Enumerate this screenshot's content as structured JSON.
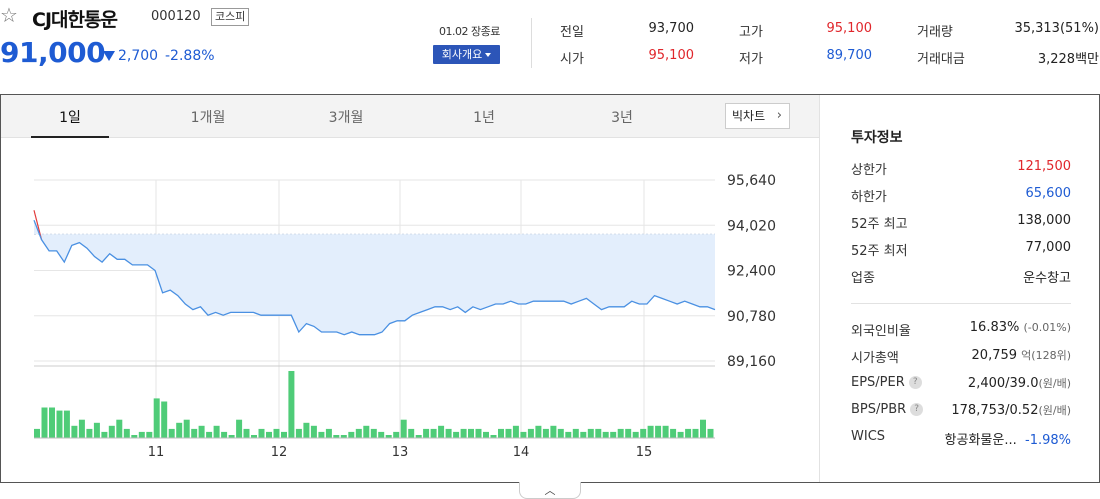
{
  "stock": {
    "name": "CJ대한통운",
    "code": "000120",
    "market": "코스피",
    "price": "91,000",
    "change_amount": "2,700",
    "change_percent": "-2.88%",
    "date_status": "01.02 장종료",
    "company_button": "회사개요"
  },
  "quote": {
    "prev_close_label": "전일",
    "prev_close": "93,700",
    "high_label": "고가",
    "high": "95,100",
    "volume_label": "거래량",
    "volume": "35,313(51%)",
    "open_label": "시가",
    "open": "95,100",
    "low_label": "저가",
    "low": "89,700",
    "amount_label": "거래대금",
    "amount": "3,228백만"
  },
  "tabs": [
    "1일",
    "1개월",
    "3개월",
    "1년",
    "3년"
  ],
  "active_tab": "1일",
  "bigchart_label": "빅차트",
  "investment": {
    "title": "투자정보",
    "rows1": [
      {
        "label": "상한가",
        "value": "121,500",
        "color": "#e0262b"
      },
      {
        "label": "하한가",
        "value": "65,600",
        "color": "#1e5bd3"
      },
      {
        "label": "52주 최고",
        "value": "138,000",
        "color": "#222222"
      },
      {
        "label": "52주 최저",
        "value": "77,000",
        "color": "#222222"
      },
      {
        "label": "업종",
        "value": "운수창고",
        "color": "#222222"
      }
    ],
    "foreign_label": "외국인비율",
    "foreign_value": "16.83%",
    "foreign_change": "(-0.01%)",
    "mcap_label": "시가총액",
    "mcap_value": "20,759",
    "mcap_unit": "억",
    "mcap_rank": "(128위)",
    "eps_label": "EPS/PER",
    "eps_value": "2,400/39.0",
    "eps_unit": "(원/배)",
    "bps_label": "BPS/PBR",
    "bps_value": "178,753/0.52",
    "bps_unit": "(원/배)",
    "wics_label": "WICS",
    "wics_value": "항공화물운...",
    "wics_change": "-1.98%",
    "help_glyph": "?"
  },
  "chart_data": {
    "type": "line",
    "x_ticks": [
      "11",
      "12",
      "13",
      "14",
      "15"
    ],
    "y_ticks": [
      95640,
      94020,
      92400,
      90780,
      89160
    ],
    "y_tick_labels": [
      "95,640",
      "94,020",
      "92,400",
      "90,780",
      "89,160"
    ],
    "ylim": [
      89160,
      95640
    ],
    "reference_price": 93700,
    "price_series": [
      94200,
      93500,
      93100,
      93100,
      92700,
      93300,
      93400,
      93200,
      92900,
      92700,
      93000,
      92800,
      92800,
      92600,
      92600,
      92600,
      92400,
      91600,
      91700,
      91500,
      91200,
      91000,
      91100,
      90800,
      90900,
      90800,
      90900,
      90900,
      90900,
      90900,
      90800,
      90800,
      90800,
      90800,
      90800,
      90200,
      90500,
      90400,
      90200,
      90200,
      90200,
      90100,
      90200,
      90100,
      90100,
      90100,
      90200,
      90500,
      90600,
      90600,
      90800,
      90900,
      91000,
      91100,
      91100,
      91000,
      91100,
      90900,
      91100,
      91000,
      91100,
      91200,
      91200,
      91300,
      91200,
      91200,
      91300,
      91300,
      91300,
      91300,
      91300,
      91200,
      91300,
      91400,
      91200,
      91000,
      91100,
      91100,
      91100,
      91300,
      91200,
      91200,
      91500,
      91400,
      91300,
      91200,
      91300,
      91200,
      91100,
      91100,
      91000
    ],
    "volume_series": [
      3,
      10,
      10,
      9,
      9,
      4,
      6,
      3,
      5,
      2,
      4,
      6,
      3,
      1,
      2,
      2,
      13,
      12,
      3,
      5,
      6,
      3,
      4,
      2,
      4,
      2,
      1,
      6,
      3,
      1,
      3,
      2,
      3,
      2,
      22,
      3,
      5,
      4,
      2,
      3,
      1,
      1,
      2,
      3,
      4,
      3,
      2,
      1,
      2,
      6,
      3,
      1,
      3,
      3,
      4,
      3,
      2,
      3,
      3,
      3,
      2,
      1,
      3,
      3,
      4,
      2,
      3,
      4,
      3,
      4,
      3,
      2,
      3,
      2,
      3,
      3,
      2,
      2,
      3,
      3,
      2,
      3,
      4,
      4,
      4,
      3,
      2,
      3,
      3,
      6,
      3
    ],
    "colors": {
      "line": "#4a90e2",
      "fill": "#e3eefc",
      "volume": "#4fcc78",
      "opening": "#e23b3b",
      "grid": "#e6e6e6",
      "ref_line": "#b8c5d8"
    }
  }
}
